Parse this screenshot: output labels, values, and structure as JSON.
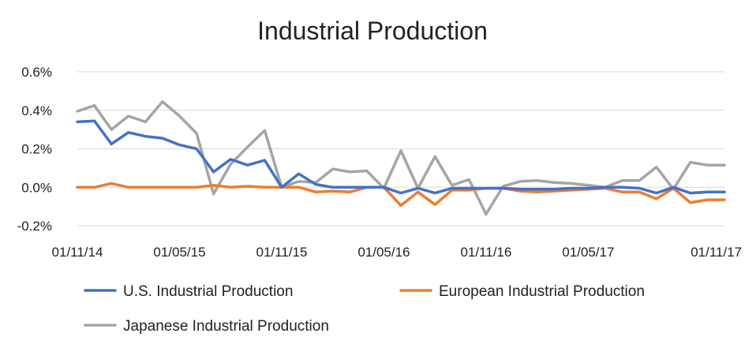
{
  "chart_data": {
    "type": "line",
    "title": "Industrial Production",
    "xlabel": "",
    "ylabel": "",
    "ylim": [
      -0.2,
      0.6
    ],
    "y_ticks": [
      0.6,
      0.4,
      0.2,
      0.0,
      -0.2
    ],
    "y_tick_labels": [
      "0.6%",
      "0.4%",
      "0.2%",
      "0.0%",
      "-0.2%"
    ],
    "x_ticks": [
      0,
      6,
      12,
      18,
      24,
      30,
      36
    ],
    "x_tick_labels": [
      "01/11/14",
      "01/05/15",
      "01/11/15",
      "01/05/16",
      "01/11/16",
      "01/05/17",
      "01/11/17"
    ],
    "grid": true,
    "legend_position": "bottom",
    "series": [
      {
        "name": "U.S. Industrial Production",
        "color": "#4472C4",
        "values": [
          0.34,
          0.345,
          0.225,
          0.285,
          0.265,
          0.255,
          0.22,
          0.2,
          0.08,
          0.145,
          0.115,
          0.14,
          0.0,
          0.07,
          0.015,
          0.0,
          0.0,
          0.0,
          0.0,
          -0.03,
          -0.005,
          -0.03,
          -0.005,
          -0.005,
          -0.005,
          -0.005,
          -0.01,
          -0.01,
          -0.01,
          -0.005,
          -0.005,
          0.0,
          0.0,
          -0.005,
          -0.03,
          0.0,
          -0.03,
          -0.025,
          -0.025
        ]
      },
      {
        "name": "European Industrial Production",
        "color": "#ED7D31",
        "values": [
          0.0,
          0.0,
          0.02,
          0.0,
          0.0,
          0.0,
          0.0,
          0.0,
          0.01,
          0.0,
          0.005,
          0.0,
          0.0,
          0.0,
          -0.025,
          -0.02,
          -0.025,
          0.0,
          0.0,
          -0.095,
          -0.025,
          -0.09,
          -0.015,
          -0.015,
          -0.005,
          -0.005,
          -0.02,
          -0.025,
          -0.02,
          -0.015,
          -0.01,
          -0.005,
          -0.025,
          -0.025,
          -0.06,
          -0.005,
          -0.08,
          -0.065,
          -0.065
        ]
      },
      {
        "name": "Japanese Industrial Production",
        "color": "#A5A5A5",
        "values": [
          0.395,
          0.425,
          0.3,
          0.37,
          0.34,
          0.445,
          0.37,
          0.28,
          -0.035,
          0.12,
          0.21,
          0.295,
          0.0,
          0.03,
          0.025,
          0.095,
          0.08,
          0.085,
          -0.005,
          0.19,
          -0.005,
          0.16,
          0.01,
          0.04,
          -0.14,
          0.005,
          0.03,
          0.035,
          0.025,
          0.02,
          0.01,
          0.0,
          0.035,
          0.035,
          0.105,
          -0.01,
          0.13,
          0.115,
          0.115
        ]
      }
    ]
  }
}
